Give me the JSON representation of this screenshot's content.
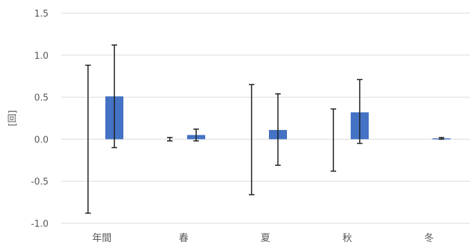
{
  "chart_data": {
    "type": "bar",
    "ylabel": "[回]",
    "ylim": [
      -1.0,
      1.5
    ],
    "yticks": [
      -1.0,
      -0.5,
      0.0,
      0.5,
      1.0,
      1.5
    ],
    "ytick_labels": [
      "-1.0",
      "-0.5",
      "0.0",
      "0.5",
      "1.0",
      "1.5"
    ],
    "grid": true,
    "categories": [
      "年間",
      "春",
      "夏",
      "秋",
      "冬"
    ],
    "series": [
      {
        "values": [
          0.0,
          0.0,
          0.0,
          0.0,
          0.0
        ],
        "error_low": [
          -0.88,
          -0.02,
          -0.66,
          -0.38,
          0.0
        ],
        "error_high": [
          0.88,
          0.02,
          0.65,
          0.36,
          0.0
        ],
        "color": "#ffffff"
      },
      {
        "values": [
          0.51,
          0.05,
          0.11,
          0.32,
          0.01
        ],
        "error_low": [
          -0.1,
          -0.02,
          -0.31,
          -0.05,
          0.0
        ],
        "error_high": [
          1.12,
          0.12,
          0.54,
          0.71,
          0.02
        ],
        "color": "#4472c4"
      }
    ]
  }
}
